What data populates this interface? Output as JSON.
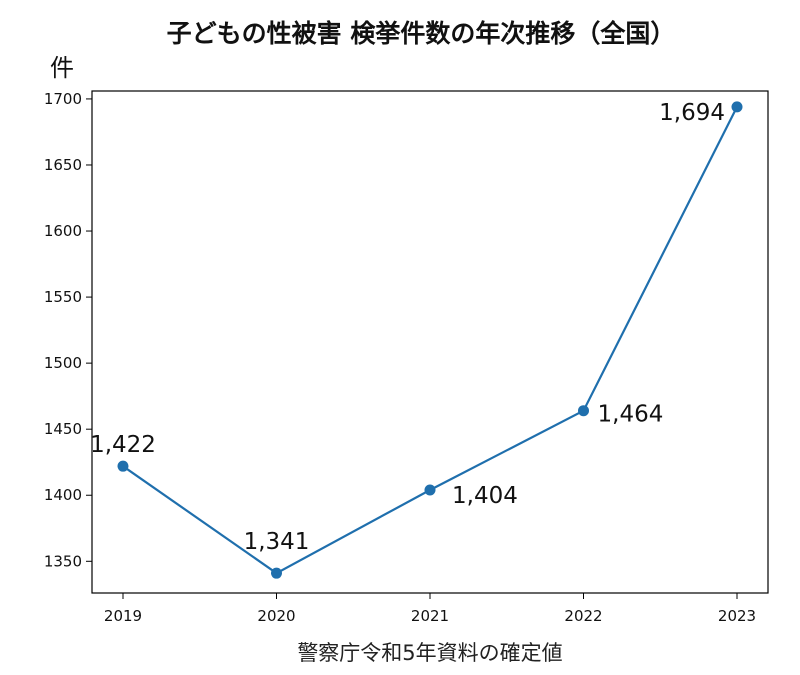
{
  "chart_data": {
    "type": "line",
    "title": "子どもの性被害 検挙件数の年次推移（全国）",
    "ylabel": "件",
    "xlabel": "",
    "x": [
      "2019",
      "2020",
      "2021",
      "2022",
      "2023"
    ],
    "series": [
      {
        "values": [
          1422,
          1341,
          1404,
          1464,
          1694
        ]
      }
    ],
    "data_labels": [
      "1,422",
      "1,341",
      "1,404",
      "1,464",
      "1,694"
    ],
    "yticks": [
      1350,
      1400,
      1450,
      1500,
      1550,
      1600,
      1650,
      1700
    ],
    "ylim": [
      1326,
      1706
    ],
    "grid": false,
    "legend": "none",
    "line_color": "#1f6fad",
    "marker_color": "#1f6fad"
  },
  "source": "警察庁令和5年資料の確定値"
}
